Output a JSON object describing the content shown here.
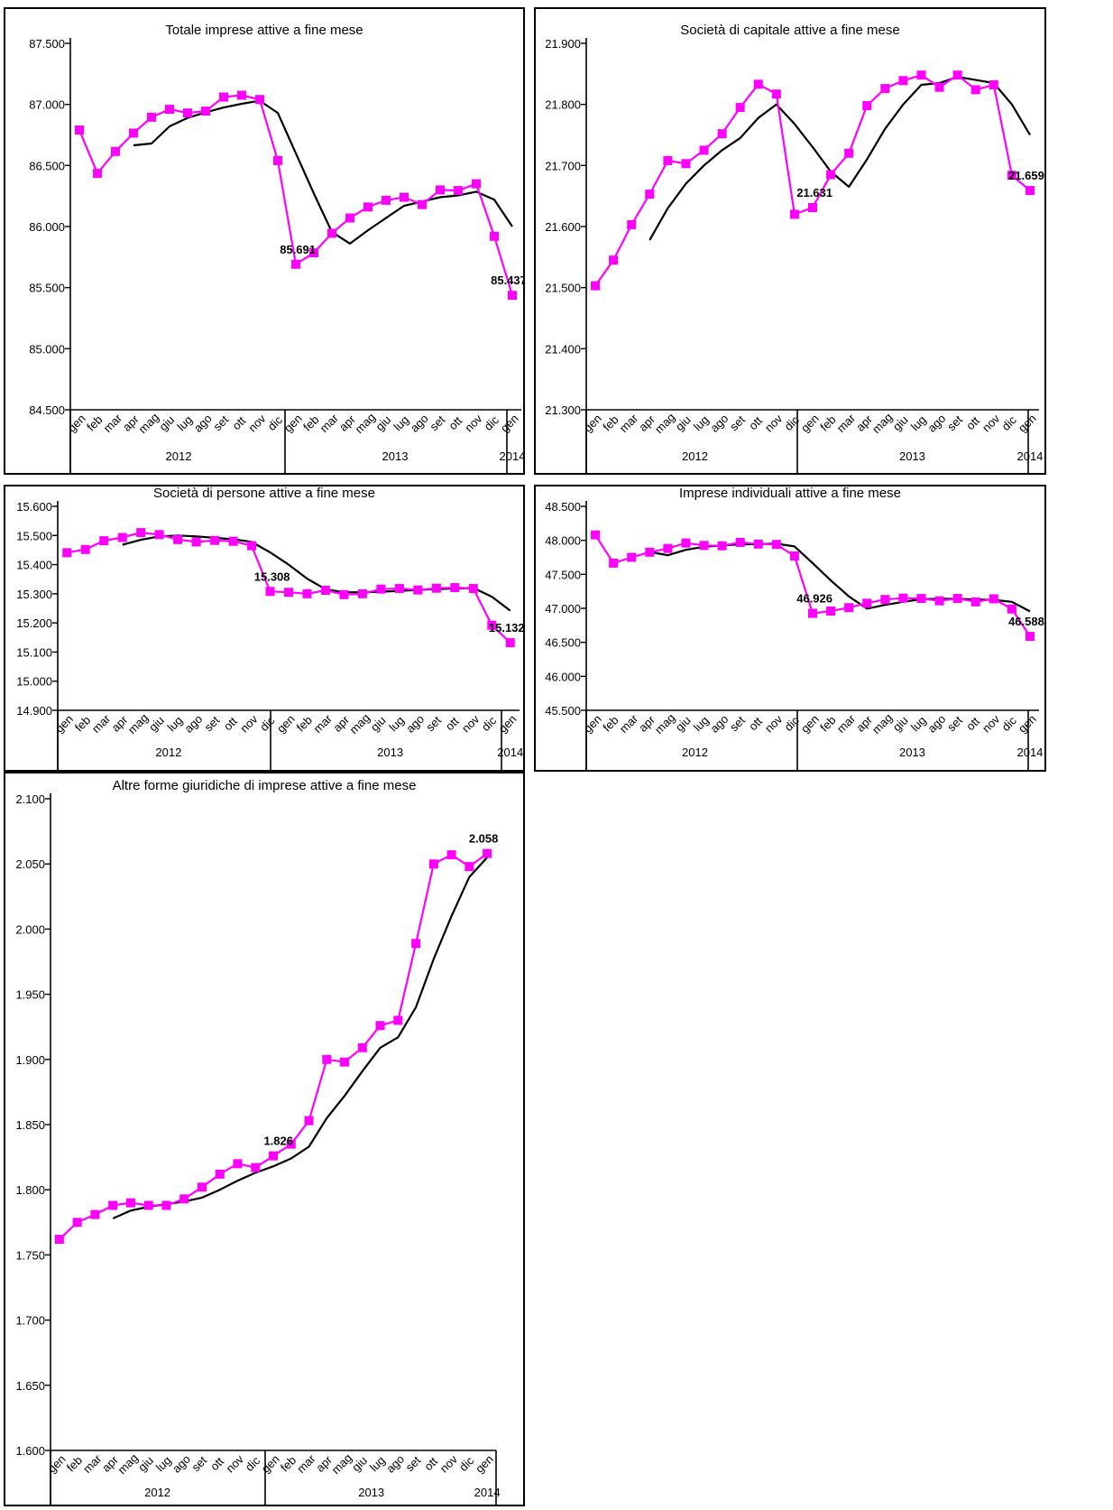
{
  "colors": {
    "series": "#ff00ff",
    "trend": "#000000",
    "axis": "#000000"
  },
  "chart_data": [
    {
      "type": "line",
      "title": "Totale imprese attive a fine mese",
      "x": [
        "gen",
        "feb",
        "mar",
        "apr",
        "mag",
        "giu",
        "lug",
        "ago",
        "set",
        "ott",
        "nov",
        "dic",
        "gen",
        "feb",
        "mar",
        "apr",
        "mag",
        "giu",
        "lug",
        "ago",
        "set",
        "ott",
        "nov",
        "dic",
        "gen"
      ],
      "years": [
        {
          "label": "2012",
          "start": 0,
          "end": 11
        },
        {
          "label": "2013",
          "start": 12,
          "end": 23
        },
        {
          "label": "2014",
          "start": 24,
          "end": 24
        }
      ],
      "ylim": [
        84500,
        87500
      ],
      "yticks": [
        84500,
        85000,
        85500,
        86000,
        86500,
        87000,
        87500
      ],
      "ytick_labels": [
        "84.500",
        "85.000",
        "85.500",
        "86.000",
        "86.500",
        "87.000",
        "87.500"
      ],
      "series": [
        {
          "values": [
            86790,
            86435,
            86615,
            86765,
            86895,
            86960,
            86930,
            86945,
            87060,
            87075,
            87040,
            86540,
            85691,
            85785,
            85945,
            86070,
            86160,
            86215,
            86240,
            86180,
            86300,
            86295,
            86350,
            85920,
            85437
          ]
        },
        {
          "values": [
            null,
            null,
            null,
            86665,
            86680,
            86820,
            86890,
            86935,
            86975,
            87005,
            87030,
            86930,
            86600,
            86270,
            85955,
            85860,
            85970,
            86070,
            86170,
            86205,
            86240,
            86255,
            86285,
            86220,
            86000
          ]
        }
      ],
      "annotations": [
        {
          "index": 12,
          "text": "85.691"
        },
        {
          "index": 24,
          "text": "85.437"
        }
      ]
    },
    {
      "type": "line",
      "title": "Società di capitale attive a fine mese",
      "x": [
        "gen",
        "feb",
        "mar",
        "apr",
        "mag",
        "giu",
        "lug",
        "ago",
        "set",
        "ott",
        "nov",
        "dic",
        "gen",
        "feb",
        "mar",
        "apr",
        "mag",
        "giu",
        "lug",
        "ago",
        "set",
        "ott",
        "nov",
        "dic",
        "gen"
      ],
      "years": [
        {
          "label": "2012",
          "start": 0,
          "end": 11
        },
        {
          "label": "2013",
          "start": 12,
          "end": 23
        },
        {
          "label": "2014",
          "start": 24,
          "end": 24
        }
      ],
      "ylim": [
        21300,
        21900
      ],
      "yticks": [
        21300,
        21400,
        21500,
        21600,
        21700,
        21800,
        21900
      ],
      "ytick_labels": [
        "21.300",
        "21.400",
        "21.500",
        "21.600",
        "21.700",
        "21.800",
        "21.900"
      ],
      "series": [
        {
          "values": [
            21503,
            21545,
            21603,
            21653,
            21708,
            21703,
            21725,
            21752,
            21795,
            21833,
            21817,
            21620,
            21631,
            21685,
            21720,
            21798,
            21826,
            21839,
            21848,
            21828,
            21848,
            21824,
            21832,
            21684,
            21659
          ]
        },
        {
          "values": [
            null,
            null,
            null,
            21578,
            21630,
            21670,
            21700,
            21725,
            21745,
            21778,
            21800,
            21768,
            21730,
            21690,
            21665,
            21710,
            21760,
            21800,
            21832,
            21835,
            21845,
            21840,
            21835,
            21800,
            21750
          ]
        }
      ],
      "annotations": [
        {
          "index": 12,
          "text": "21.631"
        },
        {
          "index": 24,
          "text": "21.659"
        }
      ]
    },
    {
      "type": "line",
      "title": "Società di persone attive a fine mese",
      "x": [
        "gen",
        "feb",
        "mar",
        "apr",
        "mag",
        "giu",
        "lug",
        "ago",
        "set",
        "ott",
        "nov",
        "dic",
        "gen",
        "feb",
        "mar",
        "apr",
        "mag",
        "giu",
        "lug",
        "ago",
        "set",
        "ott",
        "nov",
        "dic",
        "gen"
      ],
      "years": [
        {
          "label": "2012",
          "start": 0,
          "end": 11
        },
        {
          "label": "2013",
          "start": 12,
          "end": 23
        },
        {
          "label": "2014",
          "start": 24,
          "end": 24
        }
      ],
      "ylim": [
        14900,
        15600
      ],
      "yticks": [
        14900,
        15000,
        15100,
        15200,
        15300,
        15400,
        15500,
        15600
      ],
      "ytick_labels": [
        "14.900",
        "15.000",
        "15.100",
        "15.200",
        "15.300",
        "15.400",
        "15.500",
        "15.600"
      ],
      "series": [
        {
          "values": [
            15441,
            15452,
            15482,
            15493,
            15510,
            15503,
            15486,
            15478,
            15483,
            15480,
            15465,
            15308,
            15305,
            15300,
            15312,
            15297,
            15300,
            15316,
            15318,
            15313,
            15319,
            15321,
            15318,
            15192,
            15132
          ]
        },
        {
          "values": [
            null,
            null,
            null,
            15468,
            15485,
            15497,
            15500,
            15497,
            15492,
            15487,
            15478,
            15442,
            15400,
            15352,
            15315,
            15305,
            15305,
            15307,
            15310,
            15313,
            15316,
            15318,
            15320,
            15290,
            15242
          ]
        }
      ],
      "annotations": [
        {
          "index": 11,
          "text": "15.308"
        },
        {
          "index": 24,
          "text": "15.132"
        }
      ]
    },
    {
      "type": "line",
      "title": "Imprese individuali attive a fine mese",
      "x": [
        "gen",
        "feb",
        "mar",
        "apr",
        "mag",
        "giu",
        "lug",
        "ago",
        "set",
        "ott",
        "nov",
        "dic",
        "gen",
        "feb",
        "mar",
        "apr",
        "mag",
        "giu",
        "lug",
        "ago",
        "set",
        "ott",
        "nov",
        "dic",
        "gen"
      ],
      "years": [
        {
          "label": "2012",
          "start": 0,
          "end": 11
        },
        {
          "label": "2013",
          "start": 12,
          "end": 23
        },
        {
          "label": "2014",
          "start": 24,
          "end": 24
        }
      ],
      "ylim": [
        45500,
        48500
      ],
      "yticks": [
        45500,
        46000,
        46500,
        47000,
        47500,
        48000,
        48500
      ],
      "ytick_labels": [
        "45.500",
        "46.000",
        "46.500",
        "47.000",
        "47.500",
        "48.000",
        "48.500"
      ],
      "series": [
        {
          "values": [
            48080,
            47665,
            47750,
            47825,
            47880,
            47960,
            47925,
            47920,
            47970,
            47945,
            47940,
            47770,
            46926,
            46960,
            47010,
            47075,
            47130,
            47150,
            47145,
            47110,
            47145,
            47095,
            47140,
            46990,
            46588
          ]
        },
        {
          "values": [
            null,
            null,
            null,
            47830,
            47780,
            47860,
            47905,
            47925,
            47940,
            47945,
            47950,
            47910,
            47665,
            47410,
            47175,
            46995,
            47050,
            47095,
            47135,
            47140,
            47140,
            47130,
            47125,
            47095,
            46955
          ]
        }
      ],
      "annotations": [
        {
          "index": 12,
          "text": "46.926"
        },
        {
          "index": 24,
          "text": "46.588"
        }
      ]
    },
    {
      "type": "line",
      "title": "Altre forme giuridiche di imprese attive a fine mese",
      "x": [
        "gen",
        "feb",
        "mar",
        "apr",
        "mag",
        "giu",
        "lug",
        "ago",
        "set",
        "ott",
        "nov",
        "dic",
        "gen",
        "feb",
        "mar",
        "apr",
        "mag",
        "giu",
        "lug",
        "ago",
        "set",
        "ott",
        "nov",
        "dic",
        "gen"
      ],
      "years": [
        {
          "label": "2012",
          "start": 0,
          "end": 11
        },
        {
          "label": "2013",
          "start": 12,
          "end": 23
        },
        {
          "label": "2014",
          "start": 24,
          "end": 24
        }
      ],
      "ylim": [
        1600,
        2100
      ],
      "yticks": [
        1600,
        1650,
        1700,
        1750,
        1800,
        1850,
        1900,
        1950,
        2000,
        2050,
        2100
      ],
      "ytick_labels": [
        "1.600",
        "1.650",
        "1.700",
        "1.750",
        "1.800",
        "1.850",
        "1.900",
        "1.950",
        "2.000",
        "2.050",
        "2.100"
      ],
      "series": [
        {
          "values": [
            1762,
            1775,
            1781,
            1788,
            1790,
            1788,
            1788,
            1793,
            1802,
            1812,
            1820,
            1817,
            1826,
            1835,
            1853,
            1900,
            1898,
            1909,
            1926,
            1930,
            1989,
            2050,
            2057,
            2048,
            2058
          ]
        },
        {
          "values": [
            null,
            null,
            null,
            1778,
            1784,
            1787,
            1789,
            1791,
            1794,
            1800,
            1807,
            1813,
            1818,
            1824,
            1833,
            1855,
            1872,
            1891,
            1909,
            1917,
            1940,
            1977,
            2010,
            2040,
            2055
          ]
        }
      ],
      "annotations": [
        {
          "index": 12,
          "text": "1.826"
        },
        {
          "index": 24,
          "text": "2.058"
        }
      ]
    }
  ]
}
